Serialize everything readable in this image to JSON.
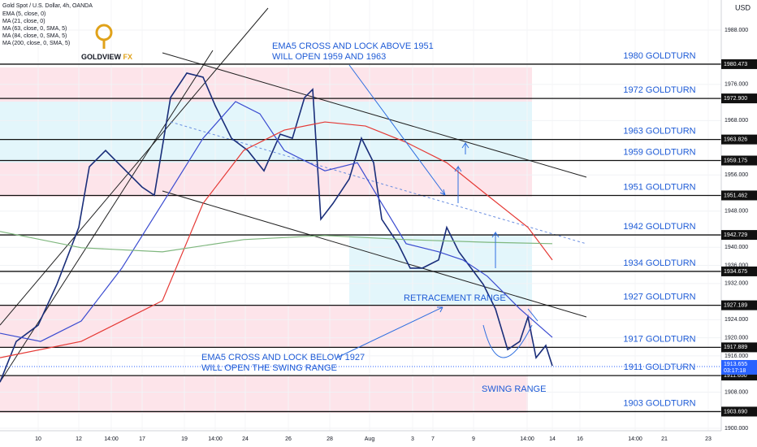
{
  "header": {
    "symbol": "Gold Spot / U.S. Dollar, 4h, OANDA",
    "indicators": [
      "EMA (5, close, 0)",
      "MA (21, close, 0)",
      "MA (63, close, 0, SMA, 5)",
      "MA (84, close, 0, SMA, 5)",
      "MA (200, close, 0, SMA, 5)"
    ],
    "logo": "GOLDVIEW",
    "logo_suffix": "FX",
    "currency": "USD"
  },
  "chart_data": {
    "type": "line",
    "xlim": [
      0,
      93.2
    ],
    "ylim": [
      1899.46,
      1994.65
    ],
    "xticks": [
      {
        "value": 4.7,
        "label": "10"
      },
      {
        "value": 9.7,
        "label": "12"
      },
      {
        "value": 13.7,
        "label": "14:00"
      },
      {
        "value": 17.5,
        "label": "17"
      },
      {
        "value": 22.7,
        "label": "19"
      },
      {
        "value": 26.5,
        "label": "14:00"
      },
      {
        "value": 30.2,
        "label": "24"
      },
      {
        "value": 35.5,
        "label": "26"
      },
      {
        "value": 40.6,
        "label": "28"
      },
      {
        "value": 45.5,
        "label": "Aug"
      },
      {
        "value": 50.8,
        "label": "3"
      },
      {
        "value": 53.3,
        "label": "7"
      },
      {
        "value": 58.3,
        "label": "9"
      },
      {
        "value": 64.9,
        "label": "14:00"
      },
      {
        "value": 68,
        "label": "14"
      },
      {
        "value": 71.4,
        "label": "16"
      },
      {
        "value": 78.2,
        "label": "14:00"
      },
      {
        "value": 81.8,
        "label": "21"
      },
      {
        "value": 87.2,
        "label": "23"
      }
    ],
    "yticks": [
      {
        "value": 1900,
        "label": "1900.000"
      },
      {
        "value": 1908,
        "label": "1908.000"
      },
      {
        "value": 1916,
        "label": "1916.000"
      },
      {
        "value": 1920,
        "label": "1920.000"
      },
      {
        "value": 1924,
        "label": "1924.000"
      },
      {
        "value": 1932,
        "label": "1932.000"
      },
      {
        "value": 1936,
        "label": "1936.000"
      },
      {
        "value": 1940,
        "label": "1940.000"
      },
      {
        "value": 1948,
        "label": "1948.000"
      },
      {
        "value": 1956,
        "label": "1956.000"
      },
      {
        "value": 1968,
        "label": "1968.000"
      },
      {
        "value": 1976,
        "label": "1976.000"
      },
      {
        "value": 1988,
        "label": "1988.000"
      }
    ],
    "series": [
      {
        "color": "#1a2e7a",
        "x": [
          0,
          2,
          4.7,
          7,
          9.7,
          11,
          13,
          15,
          17.5,
          19,
          21,
          23,
          25,
          26.5,
          28.5,
          30.5,
          32.5,
          34.5,
          36,
          37.5,
          38.5,
          39.5,
          41,
          43,
          44.5,
          46,
          47,
          49,
          50.5,
          52,
          54,
          55,
          56.5,
          58,
          59.5,
          61,
          62.5,
          64,
          65,
          66,
          67.2,
          68
        ],
        "values": [
          1910.2,
          1919.2,
          1922.8,
          1931.8,
          1944.4,
          1957.8,
          1961.4,
          1957.8,
          1953.3,
          1951.5,
          1973.1,
          1978.5,
          1977.6,
          1971.3,
          1964.1,
          1961.4,
          1956.9,
          1965.0,
          1964.1,
          1973.1,
          1974.9,
          1946.2,
          1949.7,
          1955.1,
          1964.1,
          1958.7,
          1946.2,
          1940.8,
          1935.4,
          1935.4,
          1937.2,
          1944.4,
          1939.0,
          1935.4,
          1931.8,
          1926.4,
          1917.4,
          1919.2,
          1924.6,
          1915.6,
          1918.3,
          1913.8
        ]
      },
      {
        "color": "#3a4bd0",
        "x": [
          0,
          5,
          10,
          15,
          20,
          25,
          29,
          32,
          35,
          40,
          44,
          47,
          50,
          54,
          57,
          60,
          64,
          68
        ],
        "values": [
          1921.0,
          1919.2,
          1923.7,
          1935.4,
          1949.7,
          1964.1,
          1972.2,
          1969.5,
          1961.4,
          1956.9,
          1958.7,
          1949.7,
          1940.8,
          1939.0,
          1937.2,
          1933.6,
          1926.4,
          1920.1
        ]
      },
      {
        "color": "#e53935",
        "x": [
          0,
          10,
          20,
          25,
          30,
          35,
          40,
          45,
          50,
          55,
          60,
          65,
          68
        ],
        "values": [
          1915.6,
          1919.2,
          1928.2,
          1949.7,
          1961.4,
          1965.9,
          1967.7,
          1966.8,
          1963.2,
          1958.7,
          1951.5,
          1944.4,
          1937.2
        ]
      },
      {
        "color": "#7fb77e",
        "x": [
          0,
          10,
          20,
          30,
          40,
          50,
          60,
          68
        ],
        "values": [
          1943.5,
          1939.9,
          1939.0,
          1941.7,
          1942.6,
          1941.7,
          1941.1,
          1940.8
        ]
      }
    ],
    "levels": [
      {
        "value": 1980.473,
        "label": "1980.473",
        "name": "1980 GOLDTURN"
      },
      {
        "value": 1972.9,
        "label": "1972.900",
        "name": "1972 GOLDTURN"
      },
      {
        "value": 1963.826,
        "label": "1963.826",
        "name": "1963 GOLDTURN"
      },
      {
        "value": 1959.175,
        "label": "1959.175",
        "name": "1959 GOLDTURN"
      },
      {
        "value": 1951.462,
        "label": "1951.462",
        "name": "1951 GOLDTURN"
      },
      {
        "value": 1942.729,
        "label": "1942.729",
        "name": "1942 GOLDTURN"
      },
      {
        "value": 1934.675,
        "label": "1934.675",
        "name": "1934 GOLDTURN"
      },
      {
        "value": 1927.189,
        "label": "1927.189",
        "name": "1927 GOLDTURN"
      },
      {
        "value": 1917.889,
        "label": "1917.889",
        "name": "1917 GOLDTURN"
      },
      {
        "value": 1911.65,
        "label": "1911.650",
        "name": "1911 GOLDTURN"
      },
      {
        "value": 1903.69,
        "label": "1903.690",
        "name": "1903 GOLDTURN"
      }
    ],
    "current_price": {
      "value": 1913.655,
      "label": "1913.655",
      "countdown": "03:17:18"
    },
    "annotations": [
      "EMA5 CROSS AND LOCK ABOVE 1951",
      "WILL OPEN 1959 AND 1963",
      "RETRACEMENT RANGE",
      "EMA5 CROSS AND LOCK BELOW 1927",
      "WILL OPEN THE SWING RANGE",
      "SWING RANGE"
    ]
  }
}
